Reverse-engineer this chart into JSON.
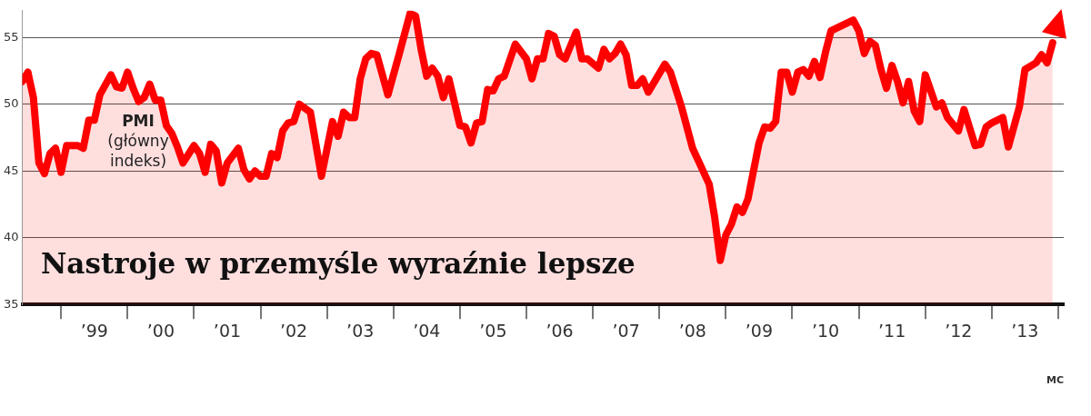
{
  "chart_data": {
    "type": "area",
    "title": "Nastroje w przemyśle wyraźnie lepsze",
    "annotations": [
      "MC"
    ],
    "xlim": [
      "1998-06",
      "2014-02"
    ],
    "xticks": [
      {
        "value": "1999",
        "label": null
      },
      {
        "value": "1999-07",
        "label": "’99"
      },
      {
        "value": "2000",
        "label": null
      },
      {
        "value": "2000-07",
        "label": "’00"
      },
      {
        "value": "2001",
        "label": null
      },
      {
        "value": "2001-07",
        "label": "’01"
      },
      {
        "value": "2002",
        "label": null
      },
      {
        "value": "2002-07",
        "label": "’02"
      },
      {
        "value": "2003",
        "label": null
      },
      {
        "value": "2003-07",
        "label": "’03"
      },
      {
        "value": "2004",
        "label": null
      },
      {
        "value": "2004-07",
        "label": "’04"
      },
      {
        "value": "2005",
        "label": null
      },
      {
        "value": "2005-07",
        "label": "’05"
      },
      {
        "value": "2006",
        "label": null
      },
      {
        "value": "2006-07",
        "label": "’06"
      },
      {
        "value": "2007",
        "label": null
      },
      {
        "value": "2007-07",
        "label": "’07"
      },
      {
        "value": "2008",
        "label": null
      },
      {
        "value": "2008-07",
        "label": "’08"
      },
      {
        "value": "2009",
        "label": null
      },
      {
        "value": "2009-07",
        "label": "’09"
      },
      {
        "value": "2010",
        "label": null
      },
      {
        "value": "2010-07",
        "label": "’10"
      },
      {
        "value": "2011",
        "label": null
      },
      {
        "value": "2011-07",
        "label": "’11"
      },
      {
        "value": "2012",
        "label": null
      },
      {
        "value": "2012-07",
        "label": "’12"
      },
      {
        "value": "2013",
        "label": null
      },
      {
        "value": "2013-07",
        "label": "’13"
      },
      {
        "value": "2014",
        "label": null
      }
    ],
    "ylim": [
      35,
      57
    ],
    "yticks": [
      35,
      40,
      45,
      50,
      55
    ],
    "grid": "y",
    "legend": false,
    "series": [
      {
        "name": "PMI (główny indeks)",
        "color": "#ff0000",
        "x": [
          "1998-06",
          "1998-07",
          "1998-08",
          "1998-09",
          "1998-10",
          "1998-11",
          "1998-12",
          "1999-01",
          "1999-02",
          "1999-04",
          "1999-05",
          "1999-06",
          "1999-07",
          "1999-08",
          "1999-10",
          "1999-11",
          "1999-12",
          "2000-01",
          "2000-02",
          "2000-03",
          "2000-04",
          "2000-05",
          "2000-06",
          "2000-07",
          "2000-08",
          "2000-09",
          "2000-10",
          "2000-11",
          "2001-01",
          "2001-02",
          "2001-03",
          "2001-04",
          "2001-05",
          "2001-06",
          "2001-07",
          "2001-09",
          "2001-10",
          "2001-11",
          "2001-12",
          "2002-01",
          "2002-02",
          "2002-03",
          "2002-04",
          "2002-05",
          "2002-06",
          "2002-07",
          "2002-08",
          "2002-10",
          "2002-12",
          "2003-02",
          "2003-03",
          "2003-04",
          "2003-05",
          "2003-06",
          "2003-07",
          "2003-08",
          "2003-09",
          "2003-10",
          "2003-12",
          "2004-02",
          "2004-04",
          "2004-05",
          "2004-06",
          "2004-07",
          "2004-08",
          "2004-09",
          "2004-10",
          "2004-11",
          "2005-01",
          "2005-02",
          "2005-03",
          "2005-04",
          "2005-05",
          "2005-06",
          "2005-07",
          "2005-08",
          "2005-09",
          "2005-11",
          "2006-01",
          "2006-02",
          "2006-03",
          "2006-04",
          "2006-05",
          "2006-06",
          "2006-07",
          "2006-08",
          "2006-10",
          "2006-11",
          "2006-12",
          "2007-02",
          "2007-03",
          "2007-04",
          "2007-05",
          "2007-06",
          "2007-07",
          "2007-08",
          "2007-09",
          "2007-10",
          "2007-11",
          "2008-02",
          "2008-03",
          "2008-05",
          "2008-07",
          "2008-08",
          "2008-10",
          "2008-11",
          "2008-12",
          "2009-01",
          "2009-02",
          "2009-03",
          "2009-04",
          "2009-05",
          "2009-07",
          "2009-08",
          "2009-09",
          "2009-10",
          "2009-11",
          "2009-12",
          "2010-01",
          "2010-02",
          "2010-03",
          "2010-04",
          "2010-05",
          "2010-06",
          "2010-07",
          "2010-08",
          "2010-12",
          "2011-01",
          "2011-02",
          "2011-03",
          "2011-04",
          "2011-05",
          "2011-06",
          "2011-07",
          "2011-08",
          "2011-09",
          "2011-10",
          "2011-11",
          "2011-12",
          "2012-01",
          "2012-03",
          "2012-04",
          "2012-05",
          "2012-07",
          "2012-08",
          "2012-10",
          "2012-11",
          "2012-12",
          "2013-01",
          "2013-03",
          "2013-04",
          "2013-06",
          "2013-07",
          "2013-09",
          "2013-10",
          "2013-11",
          "2013-12"
        ],
        "values": [
          51.7,
          52.4,
          50.5,
          45.6,
          44.8,
          46.3,
          46.7,
          44.9,
          46.9,
          46.9,
          46.7,
          48.8,
          48.8,
          50.7,
          52.2,
          51.3,
          51.2,
          52.4,
          51.2,
          50.2,
          50.5,
          51.5,
          50.3,
          50.3,
          48.4,
          47.8,
          46.8,
          45.6,
          46.9,
          46.3,
          44.9,
          47.0,
          46.5,
          44.1,
          45.6,
          46.7,
          45.1,
          44.4,
          45.0,
          44.6,
          44.6,
          46.3,
          46.0,
          48.0,
          48.6,
          48.7,
          50.0,
          49.4,
          44.6,
          48.7,
          47.6,
          49.4,
          49.0,
          49.0,
          51.9,
          53.4,
          53.8,
          53.7,
          50.7,
          53.7,
          56.8,
          56.6,
          54.1,
          52.1,
          52.7,
          52.1,
          50.5,
          51.9,
          48.4,
          48.3,
          47.1,
          48.6,
          48.7,
          51.1,
          51.0,
          51.9,
          52.1,
          54.5,
          53.4,
          51.9,
          53.4,
          53.4,
          55.3,
          55.1,
          53.7,
          53.4,
          55.4,
          53.4,
          53.4,
          52.7,
          54.1,
          53.4,
          53.8,
          54.5,
          53.7,
          51.4,
          51.4,
          51.9,
          50.9,
          53.0,
          52.4,
          49.8,
          46.7,
          45.8,
          44.0,
          41.5,
          38.3,
          40.2,
          41.0,
          42.3,
          41.9,
          42.9,
          47.1,
          48.3,
          48.2,
          48.7,
          52.4,
          52.4,
          50.9,
          52.4,
          52.6,
          52.1,
          53.2,
          52.0,
          53.9,
          55.5,
          56.3,
          55.5,
          53.8,
          54.7,
          54.4,
          52.6,
          51.2,
          52.9,
          51.7,
          50.1,
          51.7,
          49.5,
          48.7,
          52.2,
          49.8,
          50.1,
          49.0,
          48.0,
          49.6,
          46.9,
          47.0,
          48.3,
          48.6,
          49.0,
          46.8,
          49.8,
          52.6,
          53.1,
          53.7,
          53.1,
          54.6
        ]
      }
    ]
  }
}
